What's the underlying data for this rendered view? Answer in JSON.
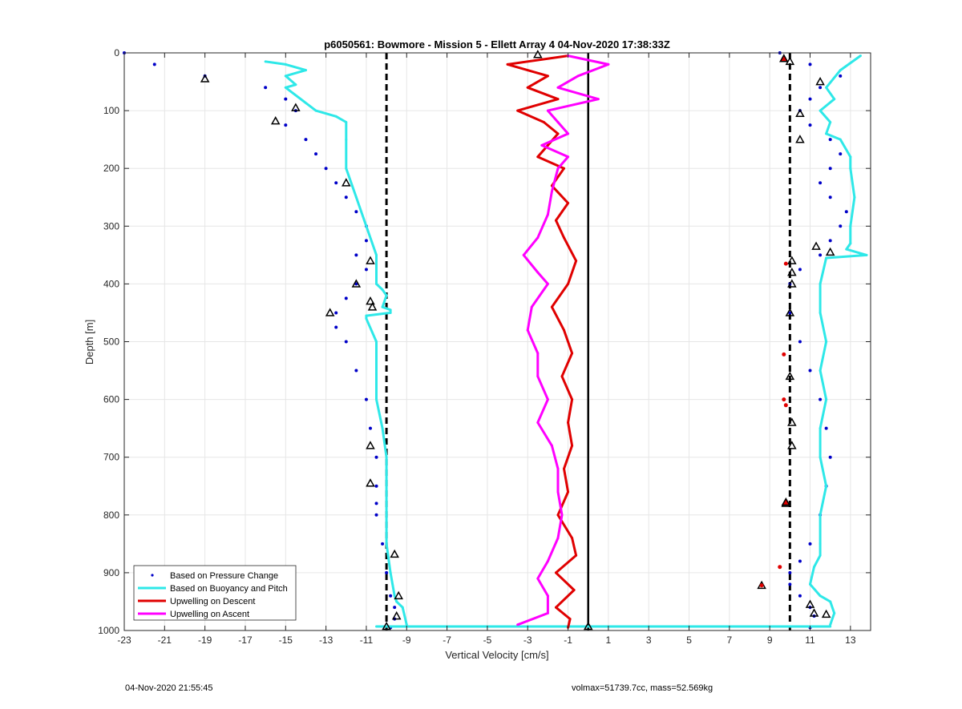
{
  "chart_data": {
    "type": "scatter",
    "title": "p6050561: Bowmore - Mission 5 - Ellett Array 4 04-Nov-2020 17:38:33Z",
    "xlabel": "Vertical Velocity [cm/s]",
    "ylabel": "Depth [m]",
    "xlim": [
      -23,
      14
    ],
    "ylim": [
      0,
      1000
    ],
    "y_reversed": true,
    "grid": true,
    "legend_position": "bottom-left",
    "xticks": [
      -23,
      -21,
      -19,
      -17,
      -15,
      -13,
      -11,
      -9,
      -7,
      -5,
      -3,
      -1,
      1,
      3,
      5,
      7,
      9,
      11,
      13
    ],
    "yticks": [
      0,
      100,
      200,
      300,
      400,
      500,
      600,
      700,
      800,
      900,
      1000
    ],
    "reference_lines": [
      {
        "x": -10,
        "style": "dashed",
        "color": "#000000"
      },
      {
        "x": 0,
        "style": "solid",
        "color": "#000000"
      },
      {
        "x": 10,
        "style": "dashed",
        "color": "#000000"
      }
    ],
    "series": [
      {
        "name": "Based on Pressure Change",
        "style": "dots",
        "color": "#0000c8",
        "profiles": [
          {
            "x": [
              -23,
              -21.5,
              -19,
              -16,
              -15,
              -14.5,
              -15,
              -14,
              -13.5,
              -13,
              -12.5,
              -12,
              -11.5,
              -11,
              -11,
              -11.5,
              -11,
              -11.5,
              -12,
              -12.5,
              -12.5,
              -12,
              -11.5,
              -11,
              -10.8,
              -10.5,
              -10.5,
              -10.5,
              -10.5,
              -10.2,
              -10,
              -9.8,
              -9.6,
              -9.6,
              -9.8
            ],
            "y": [
              0,
              20,
              40,
              60,
              80,
              100,
              125,
              150,
              175,
              200,
              225,
              250,
              275,
              300,
              325,
              350,
              375,
              400,
              425,
              450,
              475,
              500,
              550,
              600,
              650,
              700,
              750,
              780,
              800,
              850,
              900,
              940,
              960,
              980,
              995
            ]
          },
          {
            "x": [
              9.5,
              11,
              12.5,
              11.5,
              11,
              10.5,
              11,
              12,
              12.5,
              12,
              11.5,
              12,
              12.8,
              12.5,
              12,
              11.5,
              10.5,
              10,
              10,
              10.5,
              11,
              11.5,
              11.8,
              12,
              11.8,
              11.5,
              11,
              10.5,
              10,
              10,
              10.5,
              11,
              11.2,
              11
            ],
            "y": [
              0,
              20,
              40,
              60,
              80,
              100,
              125,
              150,
              175,
              200,
              225,
              250,
              275,
              300,
              325,
              350,
              375,
              400,
              450,
              500,
              550,
              600,
              650,
              700,
              750,
              800,
              850,
              880,
              900,
              920,
              940,
              960,
              975,
              995
            ]
          }
        ]
      },
      {
        "name": "Based on Buoyancy and Pitch",
        "style": "line",
        "color": "#2ee8e8",
        "profiles": [
          {
            "x": [
              -16,
              -15,
              -14,
              -15,
              -14.5,
              -15,
              -13.5,
              -12.5,
              -12,
              -12,
              -12,
              -11.5,
              -11,
              -10.5,
              -10.5,
              -10.5,
              -10.2,
              -10,
              -10.2,
              -9.8,
              -9.8,
              -11,
              -11,
              -10.5,
              -10.5,
              -10.2,
              -10,
              -10,
              -10,
              -9.8,
              -9.6,
              -9.5,
              -9.2,
              -9.0
            ],
            "y": [
              15,
              20,
              30,
              40,
              55,
              60,
              100,
              110,
              120,
              150,
              200,
              250,
              300,
              350,
              380,
              400,
              410,
              420,
              440,
              445,
              450,
              455,
              460,
              500,
              600,
              650,
              700,
              800,
              850,
              900,
              940,
              950,
              960,
              990
            ]
          },
          {
            "x": [
              13.5,
              12.5,
              11.8,
              12.2,
              11.5,
              12.0,
              11.8,
              12.5,
              13.0,
              13.0,
              13.2,
              13.0,
              13.0,
              12.8,
              13.8,
              11.8,
              11.5,
              11.5,
              11.8,
              11.5,
              11.8,
              11.5,
              11.5,
              11.8,
              11.5,
              11.5,
              11.5,
              11.2,
              11.0,
              11.5,
              12.0,
              12.2,
              12.0
            ],
            "y": [
              5,
              30,
              60,
              80,
              100,
              120,
              140,
              150,
              180,
              200,
              250,
              300,
              330,
              340,
              350,
              355,
              400,
              450,
              500,
              550,
              600,
              650,
              700,
              750,
              800,
              850,
              870,
              890,
              920,
              940,
              950,
              970,
              990
            ]
          },
          {
            "x": [
              -10.5,
              12.0
            ],
            "y": [
              993,
              993
            ]
          }
        ]
      },
      {
        "name": "Upwelling on Descent",
        "style": "line",
        "color": "#e00000",
        "x": [
          -1,
          -4,
          -2,
          -3,
          -1.5,
          -3.5,
          -2.2,
          -1.5,
          -2,
          -2.5,
          -1.2,
          -1.8,
          -1,
          -1.6,
          -1.2,
          -0.6,
          -1,
          -1.8,
          -1.2,
          -0.8,
          -1.3,
          -0.8,
          -1,
          -0.8,
          -1.2,
          -1,
          -1.5,
          -0.8,
          -0.6,
          -1.6,
          -0.7,
          -1.6,
          -0.9,
          -1
        ],
        "y": [
          5,
          20,
          40,
          60,
          80,
          100,
          120,
          140,
          160,
          180,
          200,
          230,
          260,
          290,
          320,
          360,
          400,
          440,
          480,
          520,
          560,
          600,
          640,
          680,
          720,
          760,
          800,
          840,
          870,
          900,
          930,
          960,
          980,
          995
        ]
      },
      {
        "name": "Upwelling on Ascent",
        "style": "line",
        "color": "#ff00ff",
        "x": [
          -1,
          1,
          -0.5,
          -1.5,
          0.5,
          -2,
          -1.5,
          -1,
          -2.3,
          -1,
          -1.5,
          -1.8,
          -2,
          -2.5,
          -3.2,
          -2.5,
          -2.0,
          -2.8,
          -3.0,
          -2.5,
          -2.5,
          -2,
          -2.5,
          -1.8,
          -1.5,
          -1.5,
          -1.3,
          -1.5,
          -2,
          -2.5,
          -2,
          -2,
          -3.5
        ],
        "y": [
          5,
          20,
          40,
          60,
          80,
          100,
          120,
          140,
          160,
          180,
          200,
          240,
          280,
          320,
          350,
          380,
          400,
          440,
          480,
          520,
          560,
          600,
          640,
          680,
          720,
          760,
          800,
          840,
          880,
          910,
          940,
          970,
          990
        ]
      }
    ],
    "markers": {
      "triangles_black": [
        {
          "x": -19,
          "y": 45
        },
        {
          "x": -14.5,
          "y": 95
        },
        {
          "x": -15.5,
          "y": 118
        },
        {
          "x": -12,
          "y": 225
        },
        {
          "x": -10.8,
          "y": 360
        },
        {
          "x": -11.5,
          "y": 400
        },
        {
          "x": -10.8,
          "y": 430
        },
        {
          "x": -10.7,
          "y": 440
        },
        {
          "x": -12.8,
          "y": 450
        },
        {
          "x": -10.8,
          "y": 680
        },
        {
          "x": -10.8,
          "y": 745
        },
        {
          "x": -9.6,
          "y": 868
        },
        {
          "x": -9.4,
          "y": 940
        },
        {
          "x": -9.5,
          "y": 975
        },
        {
          "x": -10,
          "y": 993
        },
        {
          "x": -2.5,
          "y": 3
        },
        {
          "x": 0,
          "y": 993
        },
        {
          "x": 10,
          "y": 15
        },
        {
          "x": 11.5,
          "y": 50
        },
        {
          "x": 10.5,
          "y": 105
        },
        {
          "x": 10.5,
          "y": 150
        },
        {
          "x": 11.3,
          "y": 335
        },
        {
          "x": 12,
          "y": 345
        },
        {
          "x": 10.1,
          "y": 360
        },
        {
          "x": 10.1,
          "y": 380
        },
        {
          "x": 10.1,
          "y": 400
        },
        {
          "x": 10,
          "y": 450
        },
        {
          "x": 10,
          "y": 560
        },
        {
          "x": 10.1,
          "y": 640
        },
        {
          "x": 10.1,
          "y": 680
        },
        {
          "x": 9.8,
          "y": 780
        },
        {
          "x": 8.6,
          "y": 922
        },
        {
          "x": 11,
          "y": 955
        },
        {
          "x": 11.2,
          "y": 970
        },
        {
          "x": 11.8,
          "y": 972
        }
      ],
      "triangles_red": [
        {
          "x": 9.7,
          "y": 10
        },
        {
          "x": 9.8,
          "y": 778
        }
      ],
      "dots_red": [
        {
          "x": 9.8,
          "y": 365
        },
        {
          "x": 9.7,
          "y": 522
        },
        {
          "x": 9.7,
          "y": 600
        },
        {
          "x": 9.8,
          "y": 610
        },
        {
          "x": 9.5,
          "y": 890
        },
        {
          "x": 8.6,
          "y": 922
        }
      ]
    }
  },
  "footer": {
    "left": "04-Nov-2020 21:55:45",
    "right": "volmax=51739.7cc, mass=52.569kg"
  }
}
